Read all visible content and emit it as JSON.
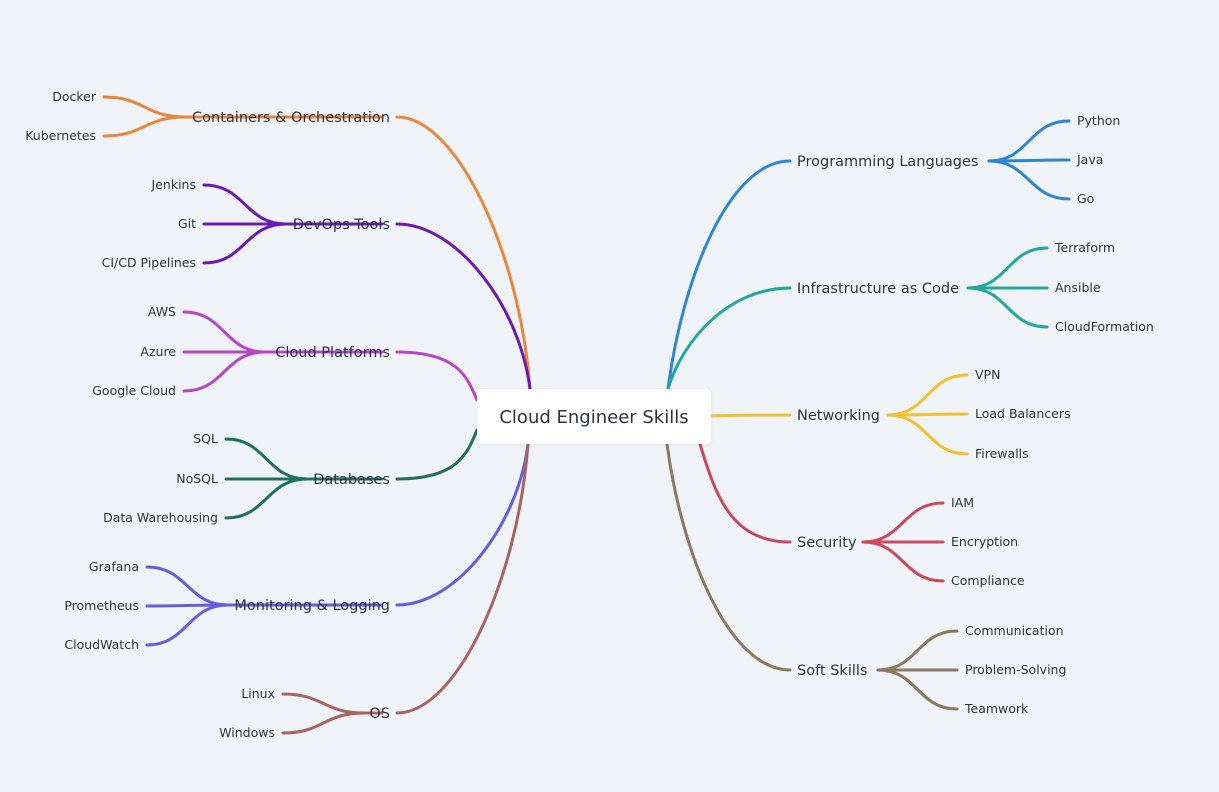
{
  "root": {
    "label": "Cloud Engineer Skills"
  },
  "branches": [
    {
      "id": "containers",
      "label": "Containers & Orchestration",
      "side": "left",
      "color": "#e8873c",
      "children": [
        "Docker",
        "Kubernetes"
      ]
    },
    {
      "id": "devops",
      "label": "DevOps Tools",
      "side": "left",
      "color": "#6a1bb3",
      "children": [
        "Jenkins",
        "Git",
        "CI/CD Pipelines"
      ]
    },
    {
      "id": "cloud-platforms",
      "label": "Cloud Platforms",
      "side": "left",
      "color": "#b844c8",
      "children": [
        "AWS",
        "Azure",
        "Google Cloud"
      ]
    },
    {
      "id": "databases",
      "label": "Databases",
      "side": "left",
      "color": "#1e7063",
      "children": [
        "SQL",
        "NoSQL",
        "Data Warehousing"
      ]
    },
    {
      "id": "monitoring",
      "label": "Monitoring & Logging",
      "side": "left",
      "color": "#6a5ae0",
      "children": [
        "Grafana",
        "Prometheus",
        "CloudWatch"
      ]
    },
    {
      "id": "os",
      "label": "OS",
      "side": "left",
      "color": "#a8645e",
      "children": [
        "Linux",
        "Windows"
      ]
    },
    {
      "id": "programming",
      "label": "Programming Languages",
      "side": "right",
      "color": "#2f86d0",
      "children": [
        "Python",
        "Java",
        "Go"
      ]
    },
    {
      "id": "iac",
      "label": "Infrastructure as Code",
      "side": "right",
      "color": "#22a89a",
      "children": [
        "Terraform",
        "Ansible",
        "CloudFormation"
      ]
    },
    {
      "id": "networking",
      "label": "Networking",
      "side": "right",
      "color": "#f3c12e",
      "children": [
        "VPN",
        "Load Balancers",
        "Firewalls"
      ]
    },
    {
      "id": "security",
      "label": "Security",
      "side": "right",
      "color": "#c94a5c",
      "children": [
        "IAM",
        "Encryption",
        "Compliance"
      ]
    },
    {
      "id": "soft-skills",
      "label": "Soft Skills",
      "side": "right",
      "color": "#877a5f",
      "children": [
        "Communication",
        "Problem-Solving",
        "Teamwork"
      ]
    }
  ]
}
